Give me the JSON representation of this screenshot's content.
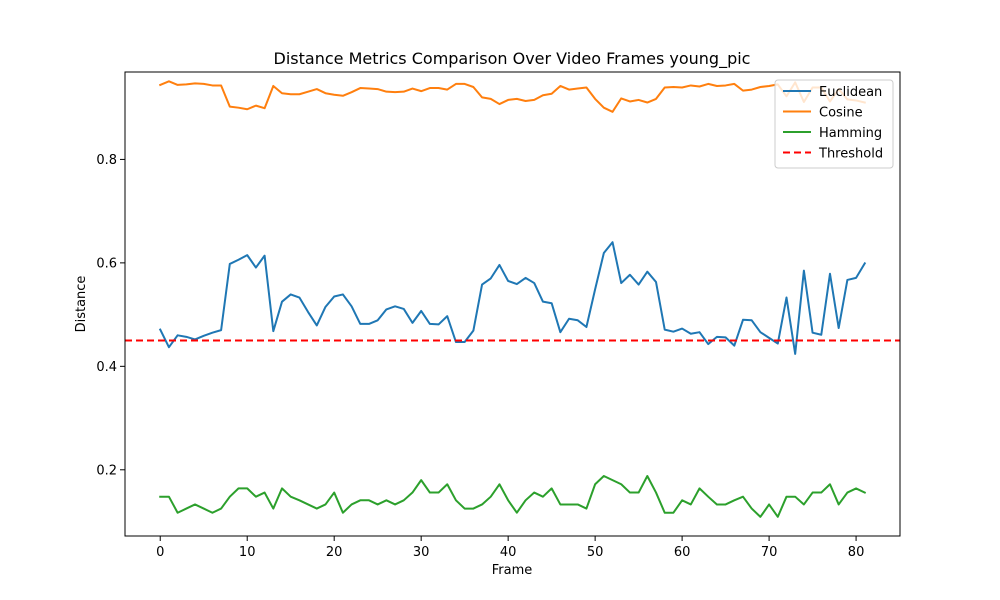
{
  "chart_data": {
    "type": "line",
    "title": "Distance Metrics Comparison Over Video Frames young_pic",
    "xlabel": "Frame",
    "ylabel": "Distance",
    "xlim": [
      -4.05,
      85.05
    ],
    "ylim": [
      0.072,
      0.969
    ],
    "xticks": [
      0,
      10,
      20,
      30,
      40,
      50,
      60,
      70,
      80
    ],
    "yticks": [
      0.2,
      0.4,
      0.6,
      0.8
    ],
    "ytick_labels": [
      "0.2",
      "0.4",
      "0.6",
      "0.8"
    ],
    "grid": false,
    "legend_position": "upper right",
    "series": [
      {
        "name": "Euclidean",
        "color": "#1f77b4",
        "style": "solid",
        "values": [
          0.471,
          0.437,
          0.46,
          0.457,
          0.452,
          0.459,
          0.465,
          0.47,
          0.598,
          0.606,
          0.615,
          0.591,
          0.614,
          0.468,
          0.525,
          0.539,
          0.533,
          0.505,
          0.479,
          0.515,
          0.535,
          0.539,
          0.516,
          0.482,
          0.482,
          0.489,
          0.51,
          0.516,
          0.511,
          0.484,
          0.507,
          0.482,
          0.481,
          0.497,
          0.447,
          0.447,
          0.469,
          0.558,
          0.57,
          0.596,
          0.565,
          0.559,
          0.571,
          0.561,
          0.525,
          0.522,
          0.466,
          0.492,
          0.489,
          0.476,
          0.549,
          0.619,
          0.64,
          0.561,
          0.577,
          0.558,
          0.583,
          0.563,
          0.471,
          0.467,
          0.473,
          0.463,
          0.466,
          0.443,
          0.457,
          0.456,
          0.44,
          0.49,
          0.489,
          0.466,
          0.455,
          0.444,
          0.533,
          0.424,
          0.585,
          0.465,
          0.461,
          0.579,
          0.474,
          0.567,
          0.571,
          0.599
        ]
      },
      {
        "name": "Cosine",
        "color": "#ff7f0e",
        "style": "solid",
        "values": [
          0.944,
          0.951,
          0.944,
          0.945,
          0.947,
          0.946,
          0.943,
          0.943,
          0.902,
          0.9,
          0.897,
          0.904,
          0.899,
          0.942,
          0.928,
          0.926,
          0.926,
          0.931,
          0.936,
          0.928,
          0.925,
          0.923,
          0.93,
          0.938,
          0.937,
          0.936,
          0.931,
          0.93,
          0.931,
          0.937,
          0.932,
          0.938,
          0.938,
          0.935,
          0.946,
          0.946,
          0.94,
          0.92,
          0.917,
          0.907,
          0.915,
          0.917,
          0.913,
          0.915,
          0.924,
          0.927,
          0.942,
          0.935,
          0.937,
          0.939,
          0.917,
          0.9,
          0.892,
          0.918,
          0.912,
          0.915,
          0.91,
          0.917,
          0.939,
          0.94,
          0.939,
          0.943,
          0.941,
          0.946,
          0.942,
          0.943,
          0.946,
          0.933,
          0.935,
          0.94,
          0.942,
          0.945,
          0.922,
          0.949,
          0.911,
          0.939,
          0.939,
          0.912,
          0.936,
          0.916,
          0.914,
          0.91
        ]
      },
      {
        "name": "Hamming",
        "color": "#2ca02c",
        "style": "solid",
        "values": [
          0.148,
          0.148,
          0.117,
          0.125,
          0.133,
          0.125,
          0.117,
          0.125,
          0.148,
          0.164,
          0.164,
          0.148,
          0.156,
          0.125,
          0.164,
          0.148,
          0.141,
          0.133,
          0.125,
          0.133,
          0.156,
          0.117,
          0.133,
          0.141,
          0.141,
          0.133,
          0.141,
          0.133,
          0.141,
          0.156,
          0.18,
          0.156,
          0.156,
          0.172,
          0.141,
          0.125,
          0.125,
          0.133,
          0.148,
          0.172,
          0.141,
          0.117,
          0.141,
          0.156,
          0.148,
          0.164,
          0.133,
          0.133,
          0.133,
          0.125,
          0.172,
          0.188,
          0.18,
          0.172,
          0.156,
          0.156,
          0.188,
          0.156,
          0.117,
          0.117,
          0.141,
          0.133,
          0.164,
          0.148,
          0.133,
          0.133,
          0.141,
          0.148,
          0.125,
          0.109,
          0.133,
          0.109,
          0.148,
          0.148,
          0.133,
          0.156,
          0.156,
          0.172,
          0.133,
          0.156,
          0.164,
          0.156
        ]
      },
      {
        "name": "Threshold",
        "color": "#ff0000",
        "style": "dashed",
        "constant": 0.45
      }
    ]
  }
}
